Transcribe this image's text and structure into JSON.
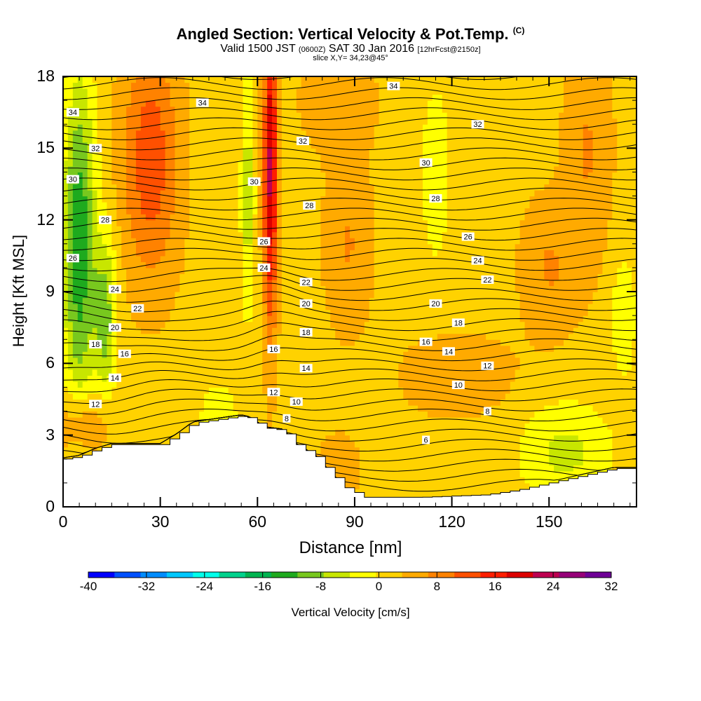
{
  "header": {
    "title": "Angled Section: Vertical Velocity & Pot.Temp.",
    "title_tag": "(C)",
    "subtitle_a": "Valid 1500 JST",
    "subtitle_b": "(0600Z)",
    "subtitle_c": "SAT 30 Jan 2016",
    "subtitle_d": "[12hrFcst@2150z]",
    "subtitle2": "slice X,Y= 34,23@45°"
  },
  "chart_data": {
    "type": "heatmap",
    "xlabel": "Distance [nm]",
    "ylabel": "Height [Kft MSL]",
    "xlim": [
      0,
      177
    ],
    "ylim": [
      0,
      18
    ],
    "xticks": [
      "0",
      "30",
      "60",
      "90",
      "120",
      "150"
    ],
    "yticks": [
      "0",
      "3",
      "6",
      "9",
      "12",
      "15",
      "18"
    ],
    "xtick_values": [
      0,
      30,
      60,
      90,
      120,
      150
    ],
    "ytick_values": [
      0,
      3,
      6,
      9,
      12,
      15,
      18
    ],
    "colorbar": {
      "label": "Vertical Velocity [cm/s]",
      "range": [
        -40,
        32
      ],
      "tick_labels": [
        "-40",
        "-32",
        "-24",
        "-16",
        "-8",
        "0",
        "8",
        "16",
        "24",
        "32"
      ],
      "tick_values": [
        -40,
        -32,
        -24,
        -16,
        -8,
        0,
        8,
        16,
        24,
        32
      ],
      "colors": [
        "#0000ff",
        "#0050ff",
        "#008cff",
        "#00c8ff",
        "#00ffea",
        "#00d28c",
        "#00b450",
        "#1eaa1e",
        "#78c81e",
        "#c8e600",
        "#ffff00",
        "#ffd200",
        "#ffaa00",
        "#ff8200",
        "#ff5000",
        "#ff1e00",
        "#dc0000",
        "#be0050",
        "#960078",
        "#6e0096"
      ]
    },
    "terrain": [
      [
        0,
        2.0
      ],
      [
        5,
        2.1
      ],
      [
        10,
        2.4
      ],
      [
        15,
        2.6
      ],
      [
        20,
        2.6
      ],
      [
        30,
        2.6
      ],
      [
        35,
        3.0
      ],
      [
        40,
        3.5
      ],
      [
        50,
        3.7
      ],
      [
        55,
        3.8
      ],
      [
        58,
        3.7
      ],
      [
        62,
        3.3
      ],
      [
        68,
        3.2
      ],
      [
        72,
        2.6
      ],
      [
        78,
        2.1
      ],
      [
        82,
        1.5
      ],
      [
        87,
        0.8
      ],
      [
        93,
        0.4
      ],
      [
        110,
        0.4
      ],
      [
        130,
        0.5
      ],
      [
        140,
        0.7
      ],
      [
        150,
        1.0
      ],
      [
        160,
        1.3
      ],
      [
        170,
        1.6
      ],
      [
        177,
        1.6
      ]
    ],
    "theta_contour_labels": [
      {
        "v": "34",
        "x": 3,
        "y": 16.5
      },
      {
        "v": "32",
        "x": 10,
        "y": 15.0
      },
      {
        "v": "30",
        "x": 3,
        "y": 13.7
      },
      {
        "v": "28",
        "x": 13,
        "y": 12.0
      },
      {
        "v": "26",
        "x": 3,
        "y": 10.4
      },
      {
        "v": "24",
        "x": 16,
        "y": 9.1
      },
      {
        "v": "22",
        "x": 23,
        "y": 8.3
      },
      {
        "v": "20",
        "x": 16,
        "y": 7.5
      },
      {
        "v": "18",
        "x": 10,
        "y": 6.8
      },
      {
        "v": "16",
        "x": 19,
        "y": 6.4
      },
      {
        "v": "14",
        "x": 16,
        "y": 5.4
      },
      {
        "v": "12",
        "x": 10,
        "y": 4.3
      },
      {
        "v": "34",
        "x": 43,
        "y": 16.9
      },
      {
        "v": "30",
        "x": 59,
        "y": 13.6
      },
      {
        "v": "26",
        "x": 62,
        "y": 11.1
      },
      {
        "v": "24",
        "x": 62,
        "y": 10.0
      },
      {
        "v": "16",
        "x": 65,
        "y": 6.6
      },
      {
        "v": "12",
        "x": 65,
        "y": 4.8
      },
      {
        "v": "8",
        "x": 69,
        "y": 3.7
      },
      {
        "v": "10",
        "x": 72,
        "y": 4.4
      },
      {
        "v": "32",
        "x": 74,
        "y": 15.3
      },
      {
        "v": "28",
        "x": 76,
        "y": 12.6
      },
      {
        "v": "22",
        "x": 75,
        "y": 9.4
      },
      {
        "v": "20",
        "x": 75,
        "y": 8.5
      },
      {
        "v": "18",
        "x": 75,
        "y": 7.3
      },
      {
        "v": "14",
        "x": 75,
        "y": 5.8
      },
      {
        "v": "34",
        "x": 102,
        "y": 17.6
      },
      {
        "v": "30",
        "x": 112,
        "y": 14.4
      },
      {
        "v": "28",
        "x": 115,
        "y": 12.9
      },
      {
        "v": "20",
        "x": 115,
        "y": 8.5
      },
      {
        "v": "16",
        "x": 112,
        "y": 6.9
      },
      {
        "v": "6",
        "x": 112,
        "y": 2.8
      },
      {
        "v": "14",
        "x": 119,
        "y": 6.5
      },
      {
        "v": "10",
        "x": 122,
        "y": 5.1
      },
      {
        "v": "18",
        "x": 122,
        "y": 7.7
      },
      {
        "v": "26",
        "x": 125,
        "y": 11.3
      },
      {
        "v": "32",
        "x": 128,
        "y": 16.0
      },
      {
        "v": "24",
        "x": 128,
        "y": 10.3
      },
      {
        "v": "22",
        "x": 131,
        "y": 9.5
      },
      {
        "v": "12",
        "x": 131,
        "y": 5.9
      },
      {
        "v": "8",
        "x": 131,
        "y": 4.0
      }
    ]
  }
}
